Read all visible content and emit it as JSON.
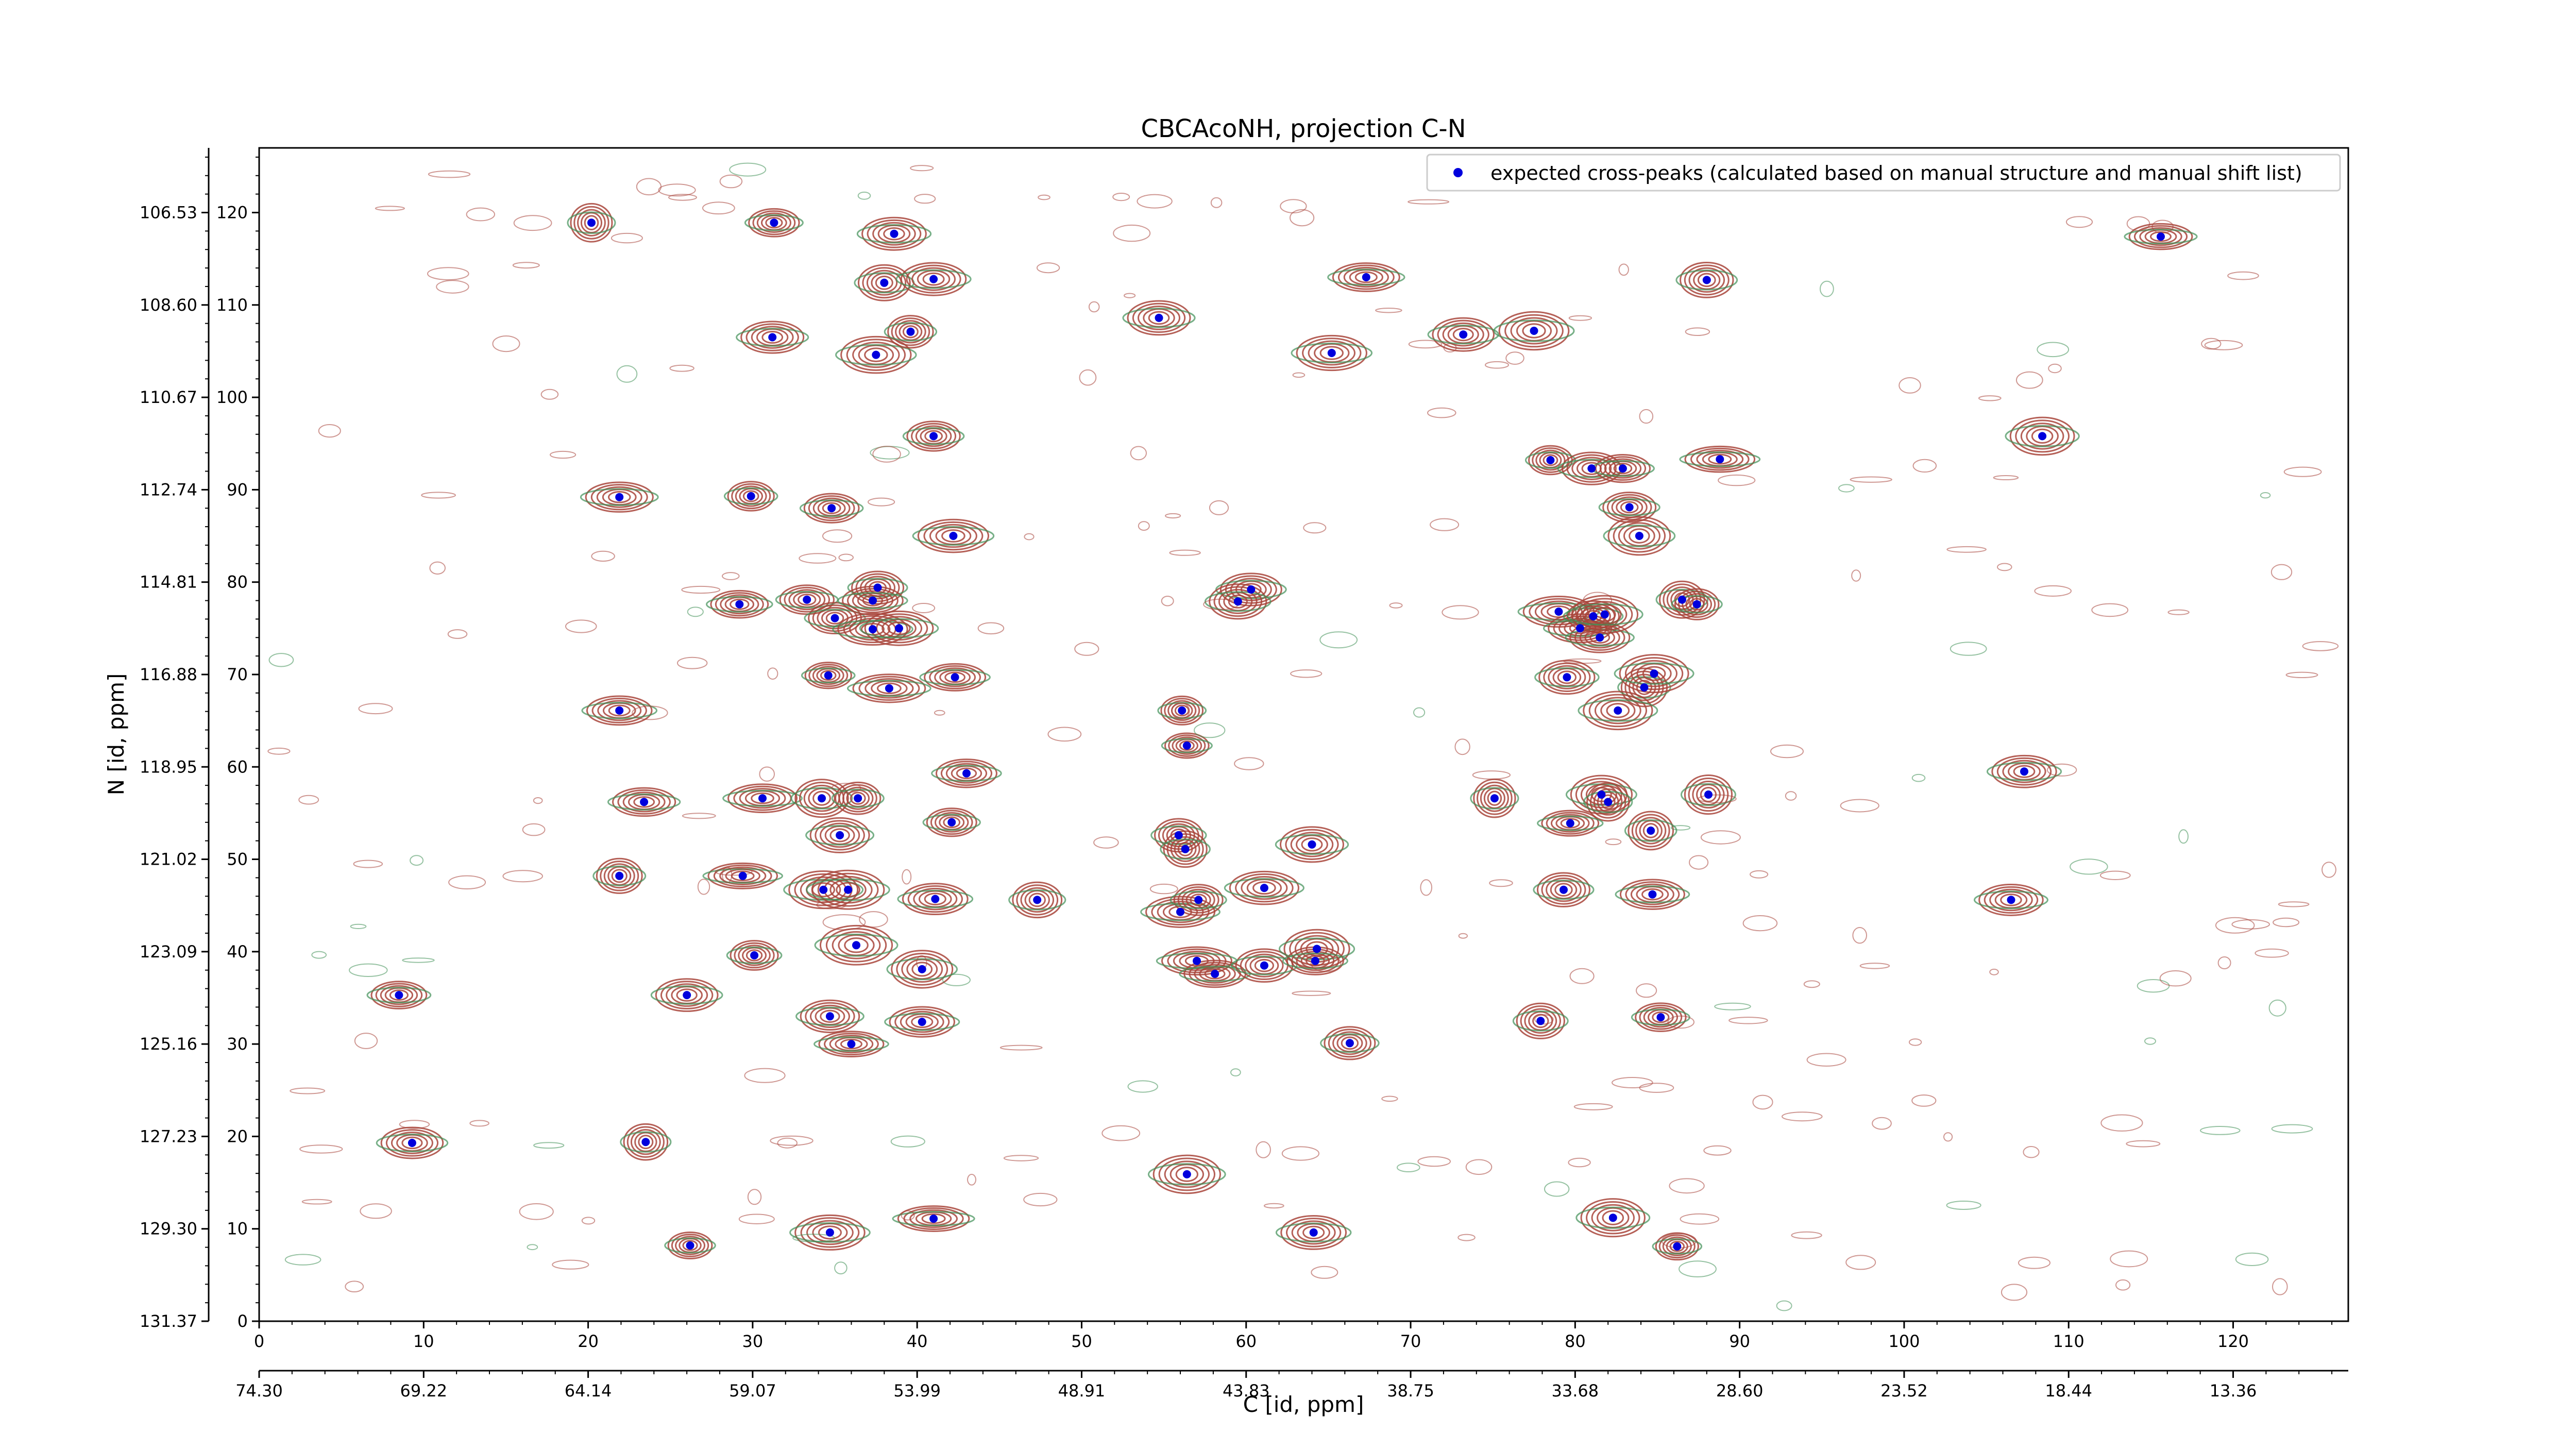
{
  "chart_data": {
    "type": "scatter",
    "title": "CBCAcoNH, projection C-N",
    "xlabel": "C [id, ppm]",
    "ylabel": "N [id, ppm]",
    "x_index_range": [
      0,
      127
    ],
    "y_index_range": [
      0,
      127
    ],
    "x_index_ticks": [
      0,
      10,
      20,
      30,
      40,
      50,
      60,
      70,
      80,
      90,
      100,
      110,
      120
    ],
    "y_index_ticks": [
      0,
      10,
      20,
      30,
      40,
      50,
      60,
      70,
      80,
      90,
      100,
      110,
      120
    ],
    "x_ppm_ticks": [
      "74.30",
      "69.22",
      "64.14",
      "59.07",
      "53.99",
      "48.91",
      "43.83",
      "38.75",
      "33.68",
      "28.60",
      "23.52",
      "18.44",
      "13.36"
    ],
    "y_ppm_ticks": [
      "106.53",
      "108.60",
      "110.67",
      "112.74",
      "114.81",
      "116.88",
      "118.95",
      "121.02",
      "123.09",
      "125.16",
      "127.23",
      "129.30",
      "131.37"
    ],
    "legend": {
      "position": "top-right",
      "entries": [
        "expected cross-peaks (calculated based on manual structure and manual shift list)"
      ]
    },
    "colors": {
      "marker": "#0000dd",
      "contour_positive": "#a8443a",
      "contour_negative": "#3f8f55"
    },
    "grid": false,
    "series": [
      {
        "name": "expected cross-peaks (calculated based on manual structure and manual shift list)",
        "points": [
          [
            20.2,
            118.9
          ],
          [
            31.3,
            118.9
          ],
          [
            38.6,
            117.7
          ],
          [
            38.0,
            112.4
          ],
          [
            41.0,
            112.8
          ],
          [
            54.7,
            108.6
          ],
          [
            67.3,
            113.0
          ],
          [
            88.0,
            112.7
          ],
          [
            115.6,
            117.4
          ],
          [
            31.2,
            106.5
          ],
          [
            37.5,
            104.6
          ],
          [
            39.6,
            107.1
          ],
          [
            65.2,
            104.8
          ],
          [
            73.2,
            106.8
          ],
          [
            77.5,
            107.2
          ],
          [
            41.0,
            95.8
          ],
          [
            21.9,
            89.2
          ],
          [
            29.9,
            89.3
          ],
          [
            34.8,
            88.0
          ],
          [
            42.2,
            85.0
          ],
          [
            108.4,
            95.8
          ],
          [
            78.5,
            93.2
          ],
          [
            81.0,
            92.3
          ],
          [
            82.9,
            92.3
          ],
          [
            88.8,
            93.3
          ],
          [
            83.3,
            88.1
          ],
          [
            83.9,
            85.0
          ],
          [
            29.2,
            77.6
          ],
          [
            33.3,
            78.1
          ],
          [
            35.0,
            76.1
          ],
          [
            37.6,
            79.4
          ],
          [
            37.3,
            78.0
          ],
          [
            37.3,
            74.9
          ],
          [
            38.9,
            75.0
          ],
          [
            60.3,
            79.2
          ],
          [
            59.5,
            77.9
          ],
          [
            79.0,
            76.8
          ],
          [
            80.3,
            75.0
          ],
          [
            81.5,
            74.0
          ],
          [
            81.1,
            76.3
          ],
          [
            81.8,
            76.5
          ],
          [
            86.5,
            78.1
          ],
          [
            87.4,
            77.6
          ],
          [
            34.6,
            69.9
          ],
          [
            38.3,
            68.5
          ],
          [
            42.3,
            69.7
          ],
          [
            79.5,
            69.7
          ],
          [
            84.2,
            68.6
          ],
          [
            84.8,
            70.1
          ],
          [
            82.6,
            66.1
          ],
          [
            21.9,
            66.1
          ],
          [
            56.1,
            66.1
          ],
          [
            56.4,
            62.3
          ],
          [
            43.0,
            59.3
          ],
          [
            107.3,
            59.5
          ],
          [
            23.4,
            56.2
          ],
          [
            30.6,
            56.6
          ],
          [
            34.2,
            56.6
          ],
          [
            36.4,
            56.6
          ],
          [
            75.1,
            56.6
          ],
          [
            81.6,
            57.0
          ],
          [
            82.0,
            56.2
          ],
          [
            88.1,
            57.0
          ],
          [
            35.3,
            52.6
          ],
          [
            42.1,
            54.0
          ],
          [
            55.9,
            52.6
          ],
          [
            56.3,
            51.1
          ],
          [
            64.0,
            51.6
          ],
          [
            79.7,
            53.9
          ],
          [
            84.6,
            53.1
          ],
          [
            21.9,
            48.2
          ],
          [
            29.4,
            48.2
          ],
          [
            34.3,
            46.7
          ],
          [
            35.8,
            46.7
          ],
          [
            41.1,
            45.7
          ],
          [
            47.3,
            45.6
          ],
          [
            56.0,
            44.3
          ],
          [
            57.1,
            45.6
          ],
          [
            61.1,
            46.9
          ],
          [
            79.3,
            46.7
          ],
          [
            84.7,
            46.2
          ],
          [
            106.5,
            45.6
          ],
          [
            30.1,
            39.6
          ],
          [
            36.3,
            40.7
          ],
          [
            40.3,
            38.1
          ],
          [
            57.0,
            39.0
          ],
          [
            58.1,
            37.6
          ],
          [
            61.1,
            38.5
          ],
          [
            64.3,
            40.3
          ],
          [
            64.2,
            39.0
          ],
          [
            8.5,
            35.3
          ],
          [
            26.0,
            35.3
          ],
          [
            34.7,
            33.0
          ],
          [
            40.3,
            32.4
          ],
          [
            36.0,
            30.0
          ],
          [
            66.3,
            30.1
          ],
          [
            77.9,
            32.5
          ],
          [
            85.2,
            32.9
          ],
          [
            9.3,
            19.3
          ],
          [
            23.5,
            19.4
          ],
          [
            56.4,
            15.9
          ],
          [
            34.7,
            9.6
          ],
          [
            41.0,
            11.1
          ],
          [
            64.1,
            9.6
          ],
          [
            82.3,
            11.2
          ],
          [
            86.2,
            8.1
          ],
          [
            26.2,
            8.2
          ]
        ]
      }
    ]
  }
}
